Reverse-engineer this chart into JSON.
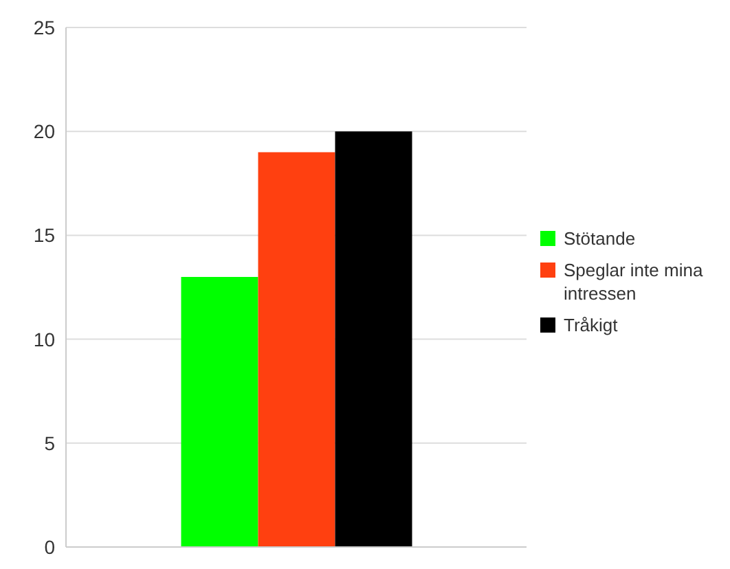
{
  "chart_data": {
    "type": "bar",
    "categories": [
      null
    ],
    "series": [
      {
        "name": "Stötande",
        "color": "#00ff00",
        "values": [
          13
        ]
      },
      {
        "name": "Speglar inte mina intressen",
        "color": "#ff4010",
        "values": [
          19
        ]
      },
      {
        "name": "Tråkigt",
        "color": "#000000",
        "values": [
          20
        ]
      }
    ],
    "ylim": [
      0,
      25
    ],
    "yticks": [
      0,
      5,
      10,
      15,
      20,
      25
    ],
    "grid": "y",
    "legend": "right",
    "tick_labels": "y"
  }
}
